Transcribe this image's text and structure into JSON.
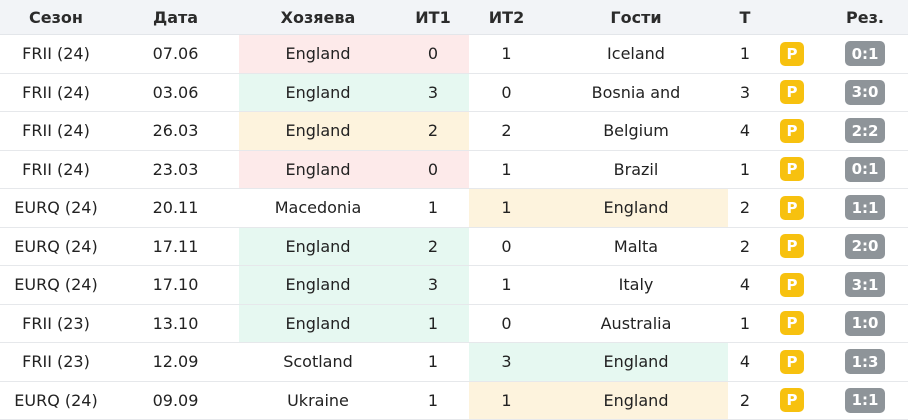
{
  "columns": {
    "season": "Сезон",
    "date": "Дата",
    "home": "Хозяева",
    "it1": "ИТ1",
    "it2": "ИТ2",
    "away": "Гости",
    "t": "Т",
    "p": "",
    "result": "Рез."
  },
  "highlight_colors": {
    "red": "#fdeaea",
    "green": "#e6f8f1",
    "yellow": "#fdf3dd",
    "p_badge": "#f7c10f",
    "result_badge": "#8e9499"
  },
  "rows": [
    {
      "season": "FRII (24)",
      "date": "07.06",
      "home": "England",
      "it1": "0",
      "it2": "1",
      "away": "Iceland",
      "t": "1",
      "p": "P",
      "result": "0:1",
      "hl_side": "home",
      "hl": "red"
    },
    {
      "season": "FRII (24)",
      "date": "03.06",
      "home": "England",
      "it1": "3",
      "it2": "0",
      "away": "Bosnia and",
      "t": "3",
      "p": "P",
      "result": "3:0",
      "hl_side": "home",
      "hl": "green"
    },
    {
      "season": "FRII (24)",
      "date": "26.03",
      "home": "England",
      "it1": "2",
      "it2": "2",
      "away": "Belgium",
      "t": "4",
      "p": "P",
      "result": "2:2",
      "hl_side": "home",
      "hl": "yellow"
    },
    {
      "season": "FRII (24)",
      "date": "23.03",
      "home": "England",
      "it1": "0",
      "it2": "1",
      "away": "Brazil",
      "t": "1",
      "p": "P",
      "result": "0:1",
      "hl_side": "home",
      "hl": "red"
    },
    {
      "season": "EURQ (24)",
      "date": "20.11",
      "home": "Macedonia",
      "it1": "1",
      "it2": "1",
      "away": "England",
      "t": "2",
      "p": "P",
      "result": "1:1",
      "hl_side": "away",
      "hl": "yellow"
    },
    {
      "season": "EURQ (24)",
      "date": "17.11",
      "home": "England",
      "it1": "2",
      "it2": "0",
      "away": "Malta",
      "t": "2",
      "p": "P",
      "result": "2:0",
      "hl_side": "home",
      "hl": "green"
    },
    {
      "season": "EURQ (24)",
      "date": "17.10",
      "home": "England",
      "it1": "3",
      "it2": "1",
      "away": "Italy",
      "t": "4",
      "p": "P",
      "result": "3:1",
      "hl_side": "home",
      "hl": "green"
    },
    {
      "season": "FRII (23)",
      "date": "13.10",
      "home": "England",
      "it1": "1",
      "it2": "0",
      "away": "Australia",
      "t": "1",
      "p": "P",
      "result": "1:0",
      "hl_side": "home",
      "hl": "green"
    },
    {
      "season": "FRII (23)",
      "date": "12.09",
      "home": "Scotland",
      "it1": "1",
      "it2": "3",
      "away": "England",
      "t": "4",
      "p": "P",
      "result": "1:3",
      "hl_side": "away",
      "hl": "green"
    },
    {
      "season": "EURQ (24)",
      "date": "09.09",
      "home": "Ukraine",
      "it1": "1",
      "it2": "1",
      "away": "England",
      "t": "2",
      "p": "P",
      "result": "1:1",
      "hl_side": "away",
      "hl": "yellow"
    }
  ]
}
